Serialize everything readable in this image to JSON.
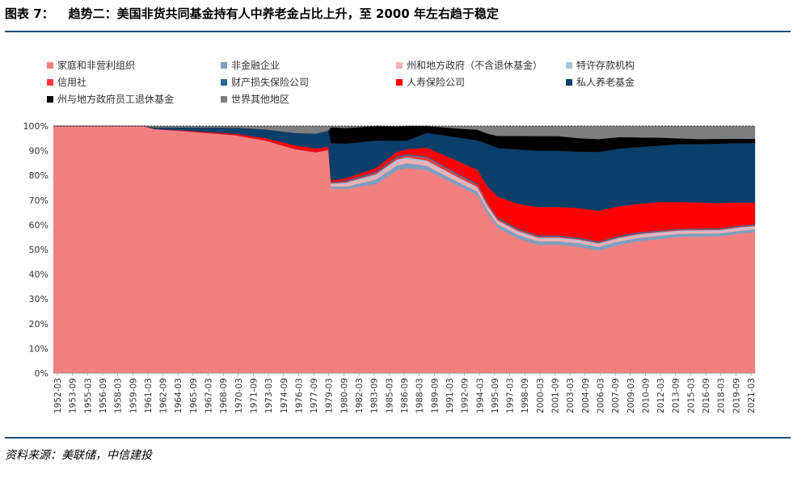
{
  "figure": {
    "number": "图表 7：",
    "title": "趋势二：美国非货共同基金持有人中养老金占比上升，至 2000 年左右趋于稳定",
    "source": "资料来源：美联储，中信建投"
  },
  "chart_data": {
    "type": "area",
    "stacked": "percent",
    "title": "",
    "xlabel": "",
    "ylabel": "",
    "ylim": [
      0,
      100
    ],
    "y_ticks": [
      "0%",
      "10%",
      "20%",
      "30%",
      "40%",
      "50%",
      "60%",
      "70%",
      "80%",
      "90%",
      "100%"
    ],
    "x_tick_labels": [
      "1952-03",
      "1953-09",
      "1955-03",
      "1956-09",
      "1958-03",
      "1959-09",
      "1961-03",
      "1962-09",
      "1964-03",
      "1965-09",
      "1967-03",
      "1968-09",
      "1970-03",
      "1971-09",
      "1973-03",
      "1974-09",
      "1976-03",
      "1977-09",
      "1979-03",
      "1980-09",
      "1982-03",
      "1983-09",
      "1985-03",
      "1986-09",
      "1988-03",
      "1989-09",
      "1991-03",
      "1992-09",
      "1994-03",
      "1995-09",
      "1997-03",
      "1998-09",
      "2000-03",
      "2001-09",
      "2003-03",
      "2004-09",
      "2006-03",
      "2007-09",
      "2009-03",
      "2010-09",
      "2012-03",
      "2013-09",
      "2015-03",
      "2016-09",
      "2018-03",
      "2019-09",
      "2021-03"
    ],
    "legend_position": "top",
    "grid": false,
    "series": [
      {
        "name": "家庭和非营利组织",
        "color": "#f47f7f"
      },
      {
        "name": "非金融企业",
        "color": "#7f9fbf"
      },
      {
        "name": "州和地方政府（不含退休基金）",
        "color": "#f4b0b0"
      },
      {
        "name": "特许存款机构",
        "color": "#a9c4dd"
      },
      {
        "name": "信用社",
        "color": "#ff3b3b"
      },
      {
        "name": "财产损失保险公司",
        "color": "#2e6b96"
      },
      {
        "name": "人寿保险公司",
        "color": "#ff0000"
      },
      {
        "name": "私人养老基金",
        "color": "#0a3f6b"
      },
      {
        "name": "州与地方政府员工退休基金",
        "color": "#000000"
      },
      {
        "name": "世界其他地区",
        "color": "#7f7f7f"
      }
    ],
    "x": [
      "1952",
      "1961",
      "1962",
      "1965",
      "1970",
      "1973",
      "1976",
      "1978",
      "1979.25",
      "1979.5",
      "1981",
      "1984",
      "1986",
      "1987",
      "1989",
      "1992",
      "1994",
      "1995",
      "1996",
      "1998",
      "2000",
      "2002",
      "2004",
      "2006",
      "2008",
      "2010",
      "2012",
      "2014",
      "2016",
      "2018",
      "2019",
      "2020",
      "2021.5"
    ],
    "stack_values": [
      {
        "name": "家庭和非营利组织",
        "values": [
          100,
          100,
          98.8,
          97.9,
          96.3,
          94.1,
          90.6,
          89.4,
          90.3,
          74.7,
          74.5,
          76.5,
          82.0,
          83.0,
          82.1,
          76.0,
          72.0,
          63.9,
          58.5,
          54.5,
          51.9,
          51.9,
          51.1,
          49.6,
          51.8,
          53.4,
          54.2,
          55.1,
          55.2,
          55.3,
          55.9,
          56.5,
          57.0
        ]
      },
      {
        "name": "非金融企业",
        "values": [
          0,
          0,
          0,
          0,
          0,
          0,
          0,
          0,
          0,
          0.8,
          1.0,
          2.0,
          2.0,
          2.0,
          1.8,
          1.5,
          1.5,
          1.5,
          1.5,
          1.5,
          1.5,
          1.5,
          1.5,
          1.5,
          1.5,
          1.4,
          1.4,
          1.3,
          1.3,
          1.3,
          1.2,
          1.2,
          1.2
        ]
      },
      {
        "name": "州和地方政府（不含退休基金）",
        "values": [
          0,
          0,
          0,
          0,
          0,
          0,
          0,
          0,
          0,
          0.8,
          1.0,
          1.2,
          1.5,
          1.5,
          1.4,
          1.3,
          1.2,
          1.1,
          1.0,
          1.0,
          0.9,
          0.9,
          0.9,
          0.9,
          0.9,
          0.9,
          0.9,
          0.8,
          0.8,
          0.8,
          0.8,
          0.8,
          0.8
        ]
      },
      {
        "name": "特许存款机构",
        "values": [
          0,
          0,
          0,
          0,
          0,
          0,
          0,
          0,
          0,
          0.4,
          0.6,
          0.8,
          0.8,
          0.8,
          0.7,
          0.6,
          0.6,
          0.5,
          0.5,
          0.5,
          0.5,
          0.5,
          0.5,
          0.5,
          0.5,
          0.5,
          0.5,
          0.5,
          0.5,
          0.5,
          0.5,
          0.5,
          0.5
        ]
      },
      {
        "name": "信用社",
        "values": [
          0,
          0,
          0,
          0,
          0,
          0,
          0,
          0,
          0,
          0.2,
          0.3,
          0.5,
          0.6,
          0.7,
          1.2,
          1.0,
          0.9,
          0.8,
          0.6,
          0.5,
          0.4,
          0.4,
          0.3,
          0.3,
          0.3,
          0.3,
          0.3,
          0.3,
          0.3,
          0.3,
          0.3,
          0.3,
          0.3
        ]
      },
      {
        "name": "财产损失保险公司",
        "values": [
          0,
          0,
          0,
          0,
          0,
          0,
          0,
          0,
          0,
          0.3,
          0.5,
          0.6,
          0.6,
          0.6,
          0.5,
          0.5,
          0.5,
          0.5,
          0.5,
          0.5,
          0.5,
          0.5,
          0.5,
          0.5,
          0.5,
          0.5,
          0.4,
          0.4,
          0.4,
          0.4,
          0.4,
          0.4,
          0.4
        ]
      },
      {
        "name": "人寿保险公司",
        "values": [
          0,
          0,
          0,
          0.3,
          0.5,
          1.0,
          1.5,
          1.5,
          1.3,
          0.8,
          1.0,
          1.5,
          2.0,
          2.0,
          3.5,
          5.0,
          5.5,
          6.5,
          8.5,
          10.0,
          11.5,
          11.5,
          12.0,
          12.4,
          12.0,
          11.5,
          11.5,
          10.8,
          10.5,
          10.2,
          9.9,
          9.3,
          8.8
        ]
      },
      {
        "name": "私人养老基金",
        "values": [
          0,
          0,
          0.6,
          1.2,
          2.5,
          3.5,
          5.0,
          6.0,
          6.5,
          15.0,
          14.0,
          11.0,
          4.5,
          3.5,
          6.0,
          9.5,
          12.0,
          17.0,
          19.5,
          22.0,
          22.8,
          22.8,
          22.8,
          23.8,
          23.3,
          23.0,
          22.8,
          23.5,
          23.7,
          24.0,
          24.0,
          24.0,
          24.1
        ]
      },
      {
        "name": "州与地方政府员工退休基金",
        "values": [
          0,
          0,
          0,
          0,
          0,
          0,
          0,
          0,
          0,
          6.5,
          6.3,
          5.9,
          5.8,
          5.9,
          2.8,
          3.6,
          4.3,
          4.2,
          4.9,
          5.5,
          5.9,
          5.9,
          5.5,
          5.2,
          4.7,
          3.9,
          3.3,
          2.3,
          2.0,
          2.0,
          1.8,
          1.8,
          1.7
        ]
      },
      {
        "name": "世界其他地区",
        "values": [
          0,
          0,
          0.6,
          0.6,
          0.7,
          1.4,
          2.9,
          3.1,
          1.9,
          0.5,
          0.8,
          0.0,
          0.2,
          0.0,
          0.0,
          1.0,
          1.5,
          3.0,
          4.0,
          4.0,
          4.1,
          4.1,
          4.9,
          5.3,
          4.5,
          4.6,
          4.7,
          5.0,
          5.3,
          5.2,
          5.2,
          5.2,
          5.2
        ]
      }
    ]
  }
}
